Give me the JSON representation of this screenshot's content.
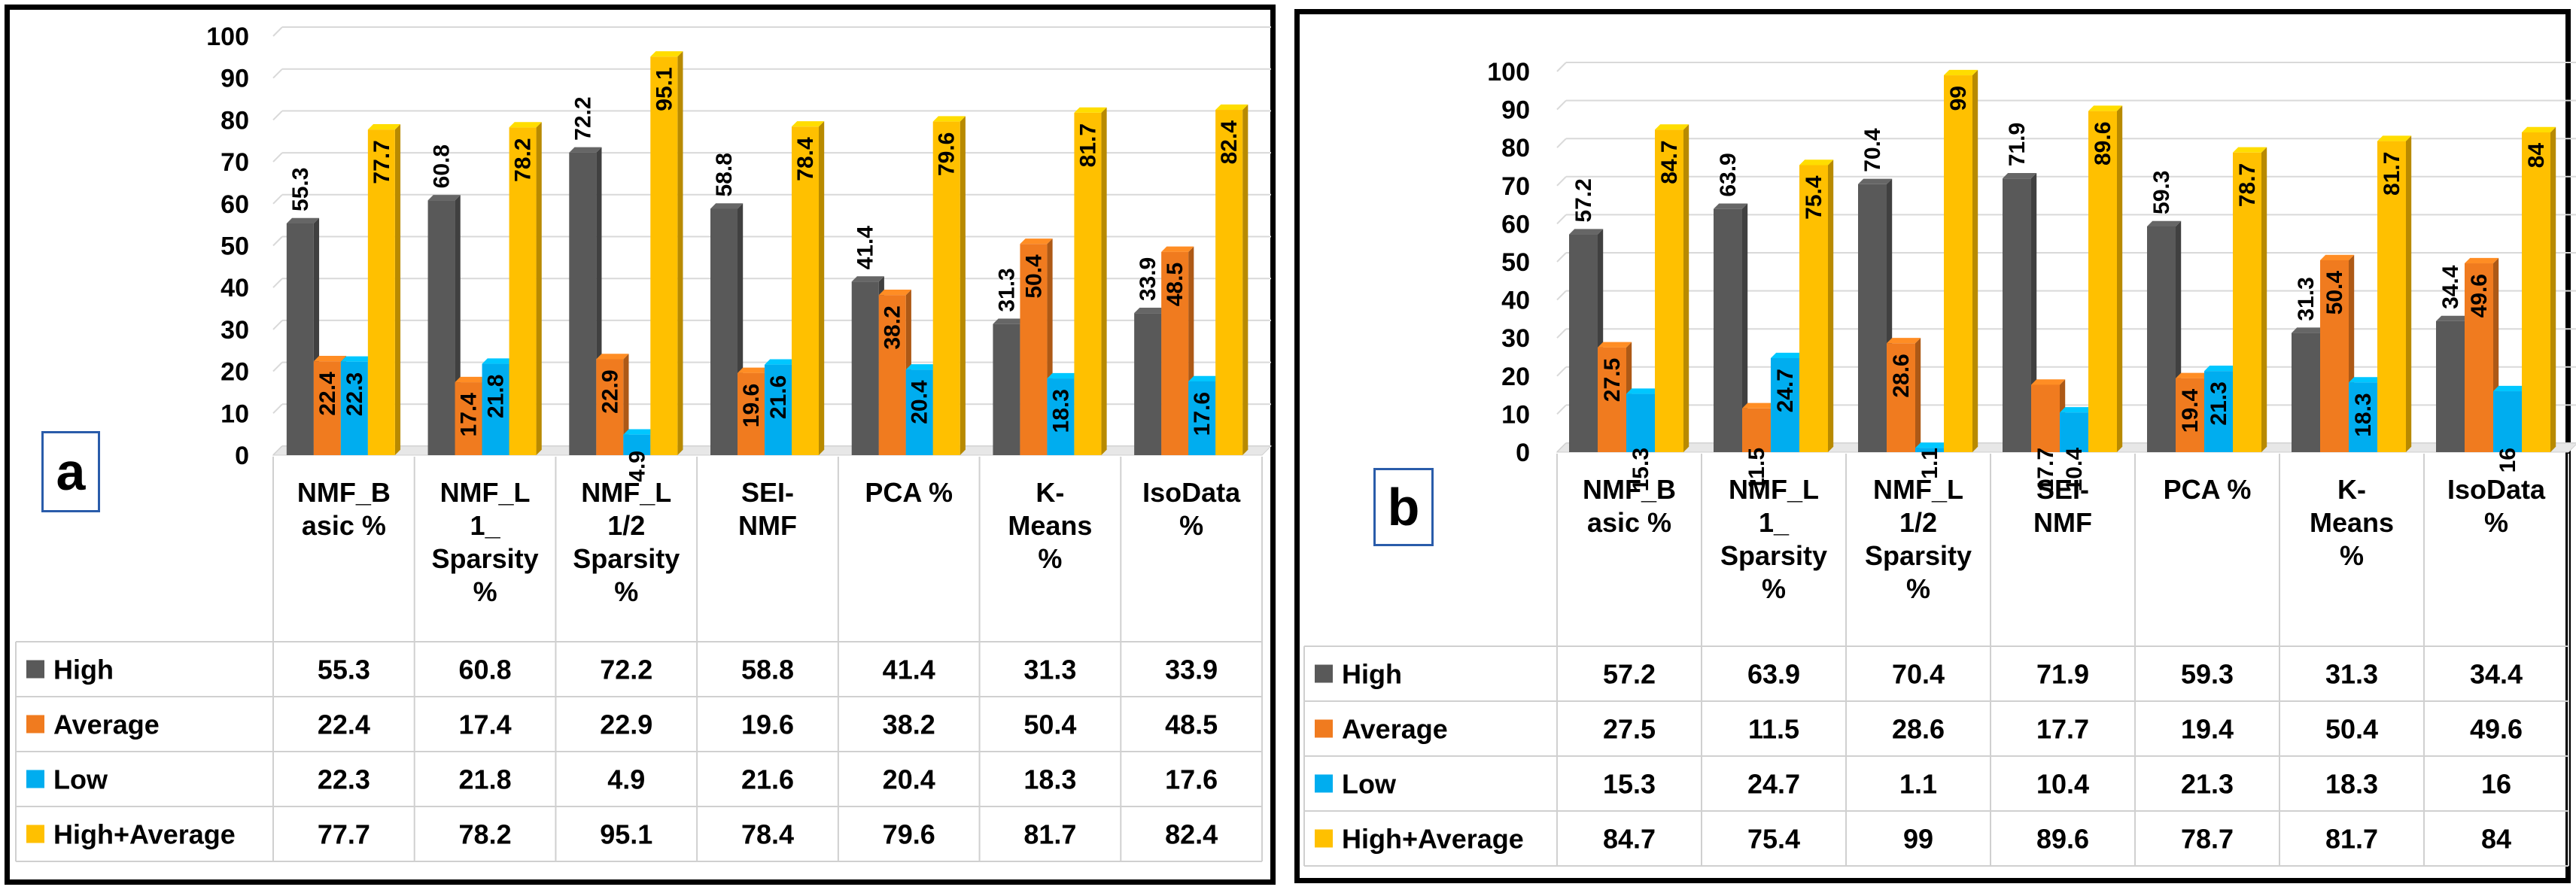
{
  "colors": {
    "High": "#595959",
    "Average": "#f07b1f",
    "Low": "#00adef",
    "High+Average": "#ffc000"
  },
  "chart_data": [
    {
      "type": "bar",
      "panel_label": "a",
      "categories": [
        [
          "NMF_B",
          "asic %"
        ],
        [
          "NMF_L",
          "1_",
          "Sparsity",
          "%"
        ],
        [
          "NMF_L",
          "1/2",
          "Sparsity",
          "%"
        ],
        [
          "SEI-",
          "NMF"
        ],
        [
          "PCA %"
        ],
        [
          "K-",
          "Means",
          "%"
        ],
        [
          "IsoData",
          "%"
        ]
      ],
      "series": [
        {
          "name": "High",
          "values": [
            55.3,
            60.8,
            72.2,
            58.8,
            41.4,
            31.3,
            33.9
          ]
        },
        {
          "name": "Average",
          "values": [
            22.4,
            17.4,
            22.9,
            19.6,
            38.2,
            50.4,
            48.5
          ]
        },
        {
          "name": "Low",
          "values": [
            22.3,
            21.8,
            4.9,
            21.6,
            20.4,
            18.3,
            17.6
          ]
        },
        {
          "name": "High+Average",
          "values": [
            77.7,
            78.2,
            95.1,
            78.4,
            79.6,
            81.7,
            82.4
          ]
        }
      ],
      "ylim": [
        0,
        100
      ],
      "yticks": [
        0,
        10,
        20,
        30,
        40,
        50,
        60,
        70,
        80,
        90,
        100
      ],
      "grid": true,
      "legend": "data-table-left"
    },
    {
      "type": "bar",
      "panel_label": "b",
      "categories": [
        [
          "NMF_B",
          "asic %"
        ],
        [
          "NMF_L",
          "1_",
          "Sparsity",
          "%"
        ],
        [
          "NMF_L",
          "1/2",
          "Sparsity",
          "%"
        ],
        [
          "SEI-",
          "NMF"
        ],
        [
          "PCA %"
        ],
        [
          "K-",
          "Means",
          "%"
        ],
        [
          "IsoData",
          "%"
        ]
      ],
      "series": [
        {
          "name": "High",
          "values": [
            57.2,
            63.9,
            70.4,
            71.9,
            59.3,
            31.3,
            34.4
          ]
        },
        {
          "name": "Average",
          "values": [
            27.5,
            11.5,
            28.6,
            17.7,
            19.4,
            50.4,
            49.6
          ]
        },
        {
          "name": "Low",
          "values": [
            15.3,
            24.7,
            1.1,
            10.4,
            21.3,
            18.3,
            16
          ]
        },
        {
          "name": "High+Average",
          "values": [
            84.7,
            75.4,
            99,
            89.6,
            78.7,
            81.7,
            84
          ]
        }
      ],
      "ylim": [
        0,
        100
      ],
      "yticks": [
        0,
        10,
        20,
        30,
        40,
        50,
        60,
        70,
        80,
        90,
        100
      ],
      "grid": true,
      "legend": "data-table-left"
    }
  ]
}
